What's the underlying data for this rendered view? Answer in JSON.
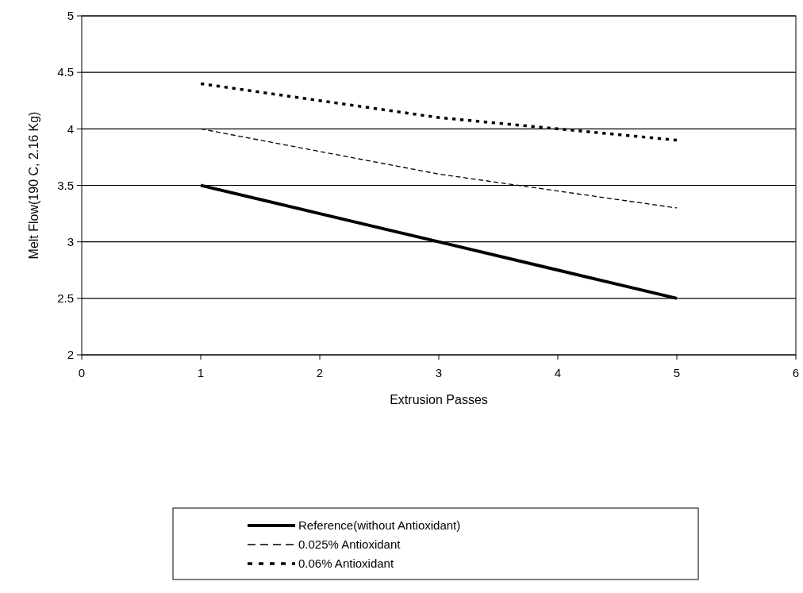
{
  "chart_data": {
    "type": "line",
    "xlabel": "Extrusion Passes",
    "ylabel": "Melt Flow(190 C, 2.16 Kg)",
    "x": [
      1,
      2,
      3,
      4,
      5
    ],
    "series": [
      {
        "name": "Reference(without Antioxidant)",
        "color": "#000000",
        "line_style": "solid",
        "values": [
          3.5,
          3.25,
          3.0,
          2.75,
          2.5
        ]
      },
      {
        "name": "0.025% Antioxidant",
        "color": "#000000",
        "line_style": "dashed",
        "values": [
          4.0,
          3.8,
          3.6,
          3.45,
          3.3
        ]
      },
      {
        "name": "0.06% Antioxidant",
        "color": "#000000",
        "line_style": "dotted",
        "values": [
          4.4,
          4.25,
          4.1,
          4.0,
          3.9
        ]
      }
    ],
    "xlim": [
      0,
      6
    ],
    "xticks": [
      0,
      1,
      2,
      3,
      4,
      5,
      6
    ],
    "ylim": [
      2,
      5
    ],
    "yticks": [
      2,
      2.5,
      3,
      3.5,
      4,
      4.5,
      5
    ],
    "grid": "y",
    "legend": "bottom",
    "marker": "none"
  }
}
